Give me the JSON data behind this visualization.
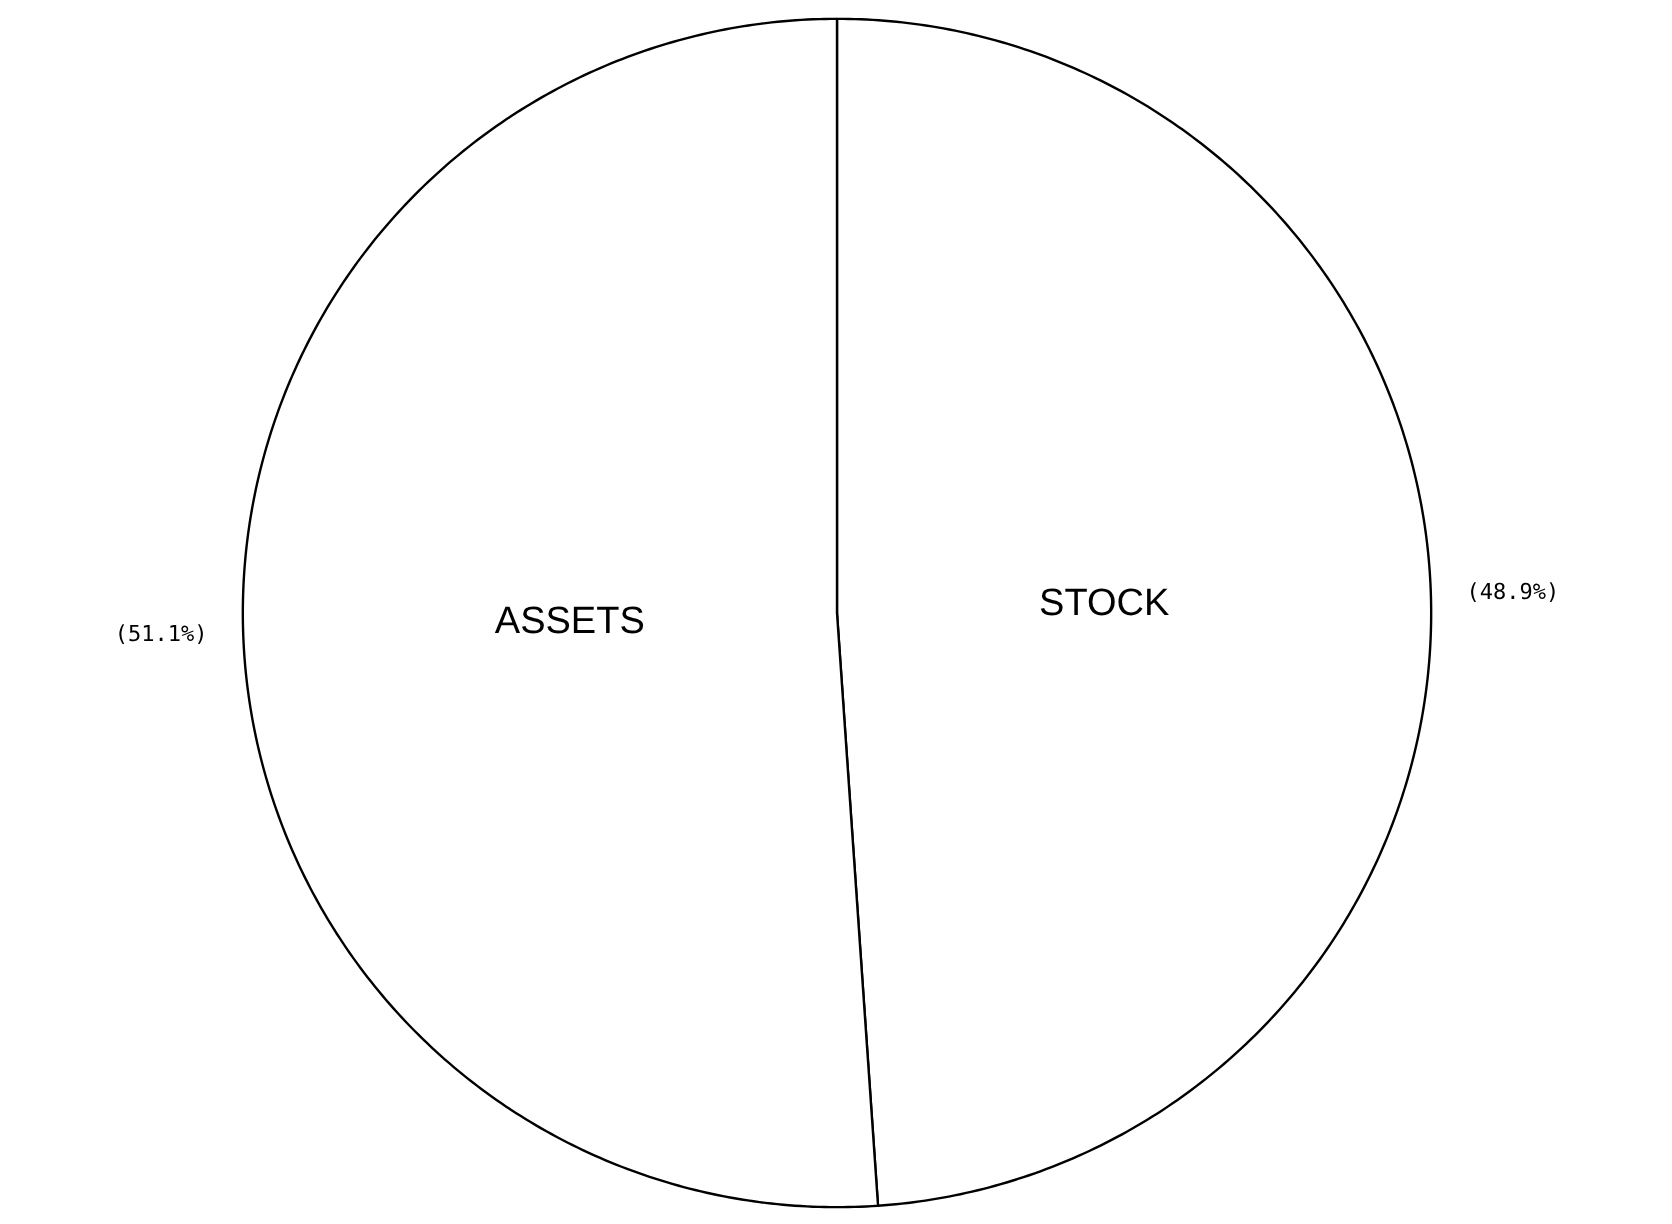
{
  "chart_data": {
    "type": "pie",
    "categories": [
      "STOCK",
      "ASSETS"
    ],
    "values": [
      48.9,
      51.1
    ],
    "colors": [
      "#ffffff",
      "#ffffff"
    ],
    "value_labels": [
      "(48.9%)",
      "(51.1%)"
    ]
  }
}
